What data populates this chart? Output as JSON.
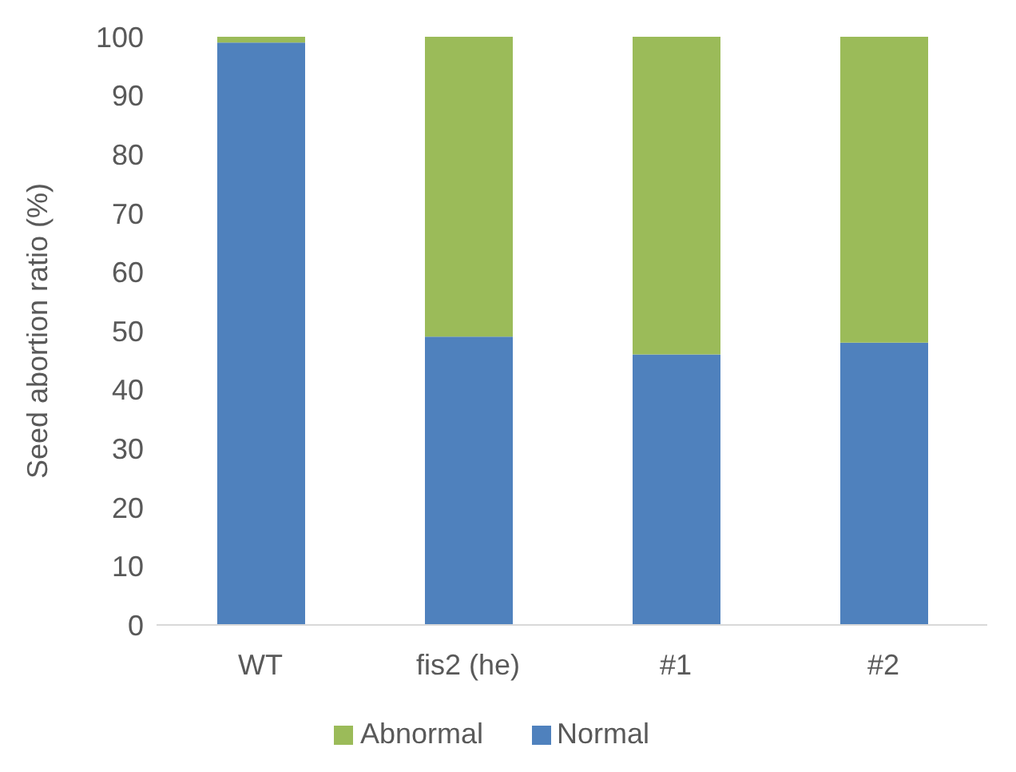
{
  "chart_data": {
    "type": "bar",
    "stacked": true,
    "ylabel": "Seed abortion ratio (%)",
    "categories": [
      "WT",
      "fis2 (he)",
      "#1",
      "#2"
    ],
    "series": [
      {
        "name": "Normal",
        "color": "#4f81bd",
        "values": [
          99,
          49,
          46,
          48
        ]
      },
      {
        "name": "Abnormal",
        "color": "#9bbb59",
        "values": [
          1,
          51,
          54,
          52
        ]
      }
    ],
    "ylim": [
      0,
      100
    ],
    "yticks": [
      0,
      10,
      20,
      30,
      40,
      50,
      60,
      70,
      80,
      90,
      100
    ],
    "legend": "bottom"
  }
}
